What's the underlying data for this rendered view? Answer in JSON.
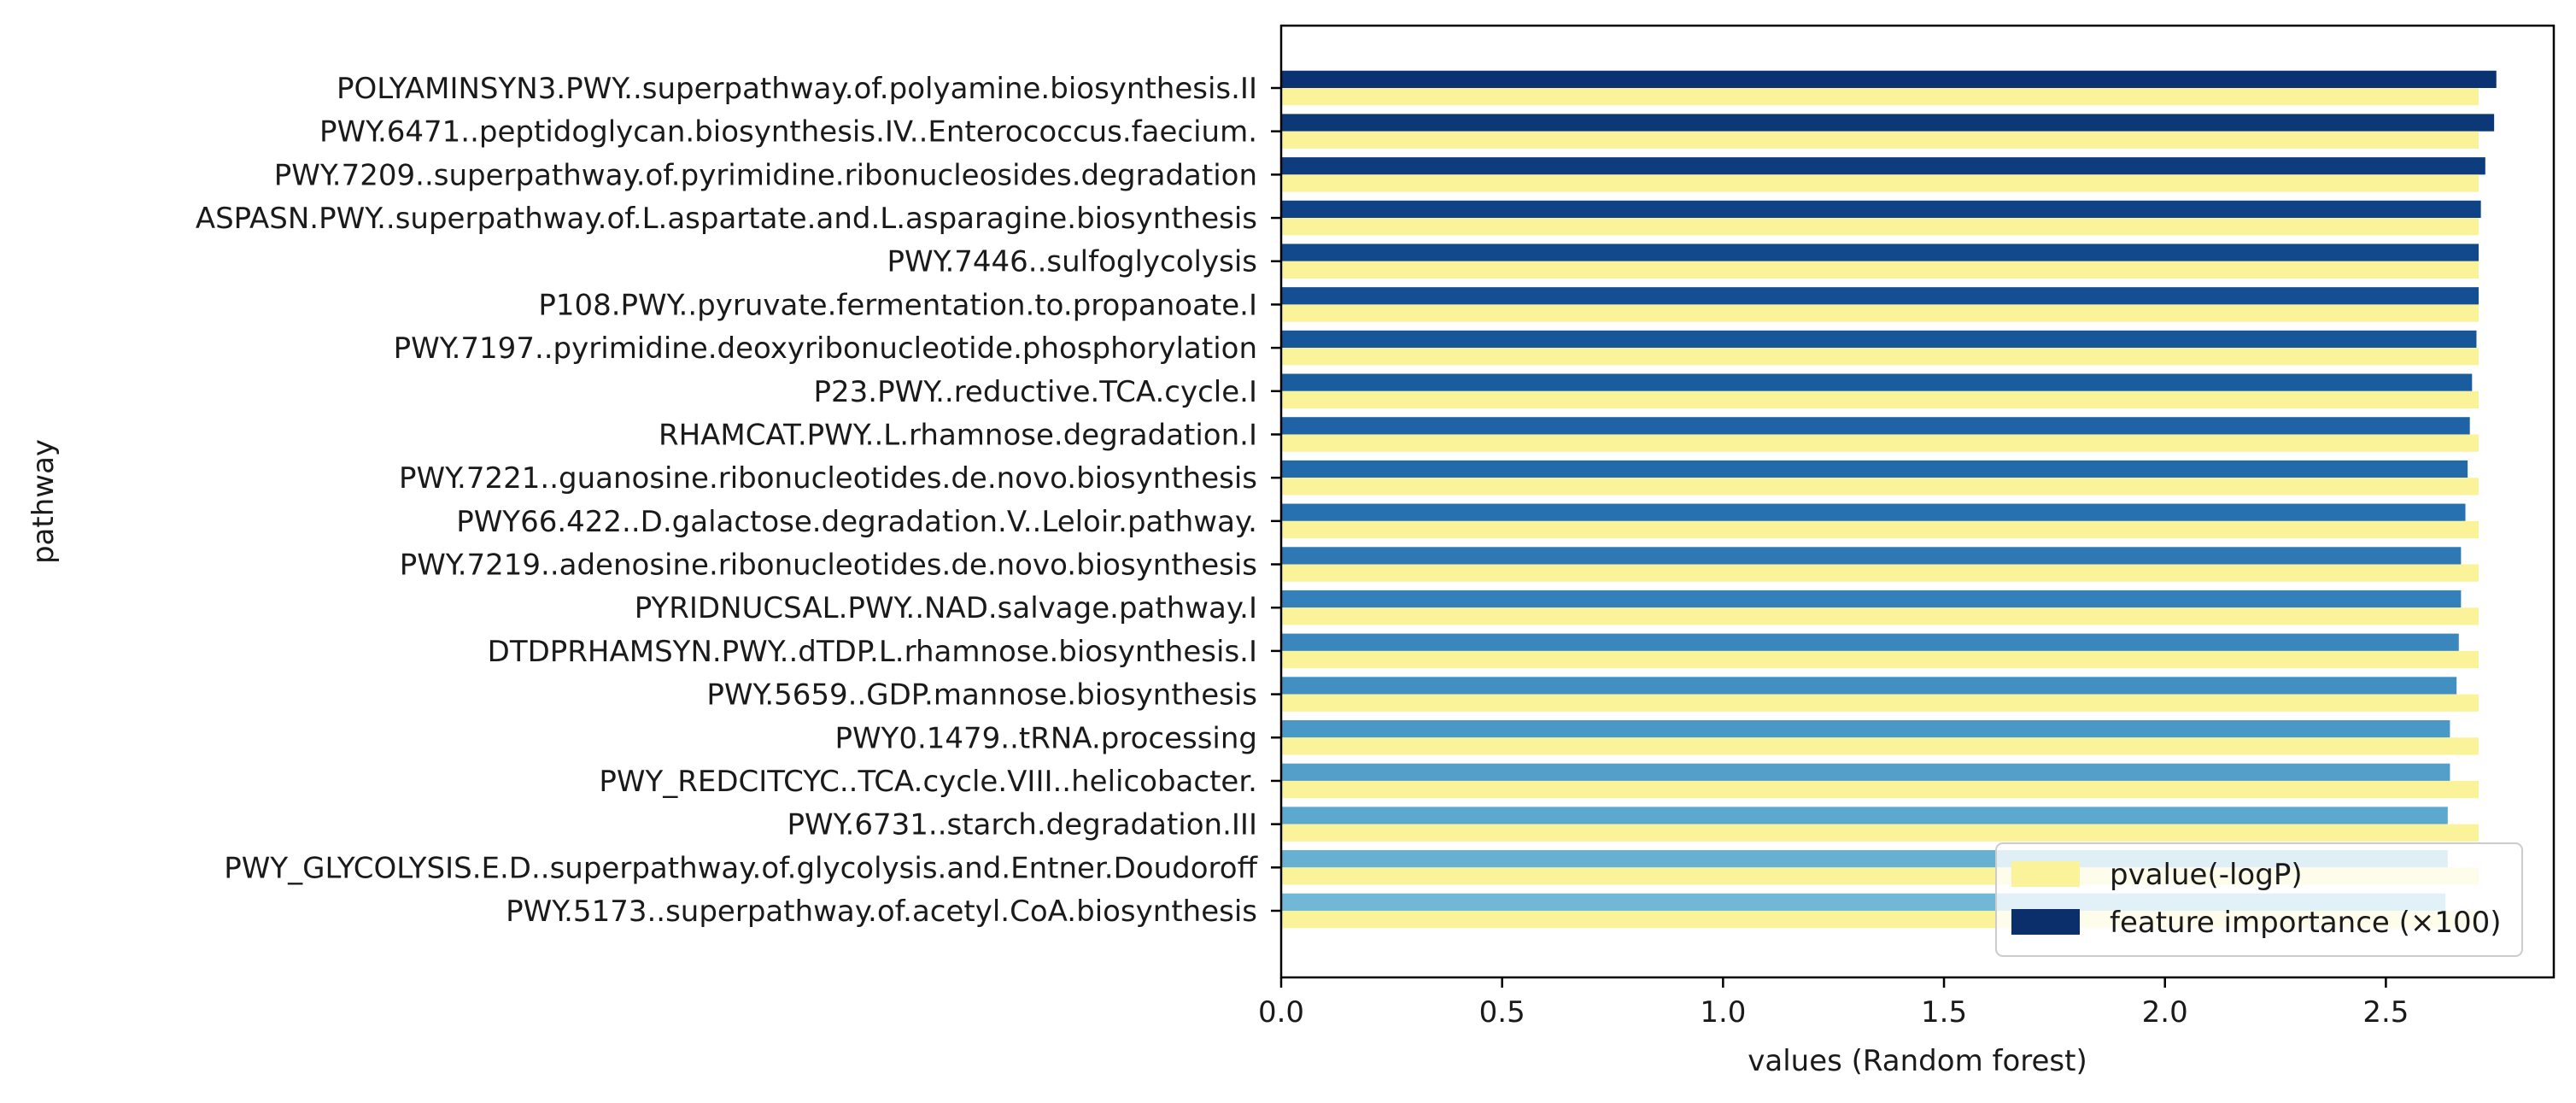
{
  "chart_data": {
    "type": "bar",
    "orientation": "horizontal",
    "xlabel": "values (Random forest)",
    "ylabel": "pathway",
    "xlim": [
      0,
      2.88
    ],
    "xticks": [
      "0.0",
      "0.5",
      "1.0",
      "1.5",
      "2.0",
      "2.5"
    ],
    "xtick_values": [
      0,
      0.5,
      1.0,
      1.5,
      2.0,
      2.5
    ],
    "grid": false,
    "legend_position": "bottom-right",
    "categories": [
      "POLYAMINSYN3.PWY..superpathway.of.polyamine.biosynthesis.II",
      "PWY.6471..peptidoglycan.biosynthesis.IV..Enterococcus.faecium.",
      "PWY.7209..superpathway.of.pyrimidine.ribonucleosides.degradation",
      "ASPASN.PWY..superpathway.of.L.aspartate.and.L.asparagine.biosynthesis",
      "PWY.7446..sulfoglycolysis",
      "P108.PWY..pyruvate.fermentation.to.propanoate.I",
      "PWY.7197..pyrimidine.deoxyribonucleotide.phosphorylation",
      "P23.PWY..reductive.TCA.cycle.I",
      "RHAMCAT.PWY..L.rhamnose.degradation.I",
      "PWY.7221..guanosine.ribonucleotides.de.novo.biosynthesis",
      "PWY66.422..D.galactose.degradation.V..Leloir.pathway.",
      "PWY.7219..adenosine.ribonucleotides.de.novo.biosynthesis",
      "PYRIDNUCSAL.PWY..NAD.salvage.pathway.I",
      "DTDPRHAMSYN.PWY..dTDP.L.rhamnose.biosynthesis.I",
      "PWY.5659..GDP.mannose.biosynthesis",
      "PWY0.1479..tRNA.processing",
      "PWY_REDCITCYC..TCA.cycle.VIII..helicobacter.",
      "PWY.6731..starch.degradation.III",
      "PWY_GLYCOLYSIS.E.D..superpathway.of.glycolysis.and.Entner.Doudoroff",
      "PWY.5173..superpathway.of.acetyl.CoA.biosynthesis"
    ],
    "series": [
      {
        "name": "pvalue(-logP)",
        "color": "#fbf39a",
        "values": [
          2.71,
          2.71,
          2.71,
          2.71,
          2.71,
          2.71,
          2.71,
          2.71,
          2.71,
          2.71,
          2.71,
          2.71,
          2.71,
          2.71,
          2.71,
          2.71,
          2.71,
          2.71,
          2.71,
          2.71
        ]
      },
      {
        "name": "feature importance (×100)",
        "legend_color": "#0b2f6b",
        "colors": [
          "#0b3373",
          "#0c3878",
          "#0d3d7f",
          "#0f4386",
          "#11498c",
          "#134f92",
          "#165699",
          "#1a5d9f",
          "#1e63a5",
          "#226aaa",
          "#2771b0",
          "#2d78b5",
          "#3380ba",
          "#3a87be",
          "#4290c2",
          "#4a98c6",
          "#539fca",
          "#5ca8ce",
          "#66b0d2",
          "#70b8d6"
        ],
        "values": [
          2.75,
          2.745,
          2.725,
          2.715,
          2.71,
          2.71,
          2.705,
          2.695,
          2.69,
          2.685,
          2.68,
          2.67,
          2.67,
          2.665,
          2.66,
          2.645,
          2.645,
          2.64,
          2.64,
          2.635
        ]
      }
    ]
  }
}
